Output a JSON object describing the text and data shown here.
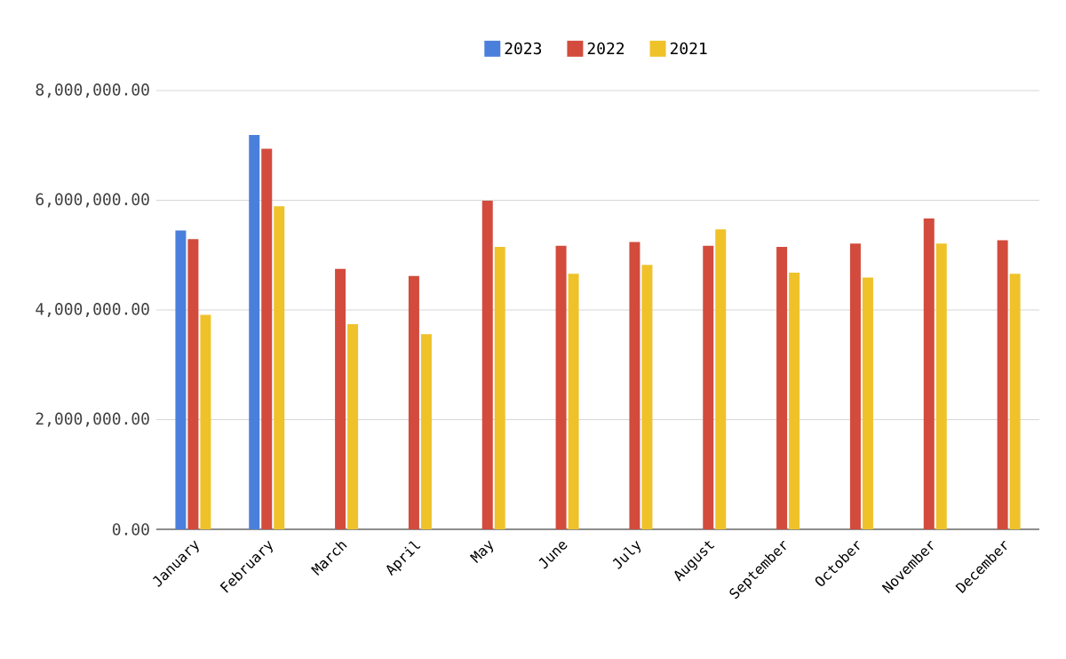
{
  "chart_data": {
    "type": "bar",
    "categories": [
      "January",
      "February",
      "March",
      "April",
      "May",
      "June",
      "July",
      "August",
      "September",
      "October",
      "November",
      "December"
    ],
    "series": [
      {
        "name": "2023",
        "color": "#4a7fdc",
        "values": [
          5450000,
          7190000,
          null,
          null,
          null,
          null,
          null,
          null,
          null,
          null,
          null,
          null
        ]
      },
      {
        "name": "2022",
        "color": "#d24b3c",
        "values": [
          5290000,
          6940000,
          4750000,
          4620000,
          5990000,
          5170000,
          5240000,
          5170000,
          5150000,
          5210000,
          5670000,
          5270000
        ]
      },
      {
        "name": "2021",
        "color": "#efc22a",
        "values": [
          3910000,
          5890000,
          3740000,
          3560000,
          5150000,
          4660000,
          4820000,
          5470000,
          4680000,
          4590000,
          5210000,
          4660000
        ]
      }
    ],
    "ylim": [
      0,
      8000000
    ],
    "yticks": [
      {
        "value": 0,
        "label": "0.00"
      },
      {
        "value": 2000000,
        "label": "2,000,000.00"
      },
      {
        "value": 4000000,
        "label": "4,000,000.00"
      },
      {
        "value": 6000000,
        "label": "6,000,000.00"
      },
      {
        "value": 8000000,
        "label": "8,000,000.00"
      }
    ],
    "grid": "y",
    "legend": "top"
  }
}
